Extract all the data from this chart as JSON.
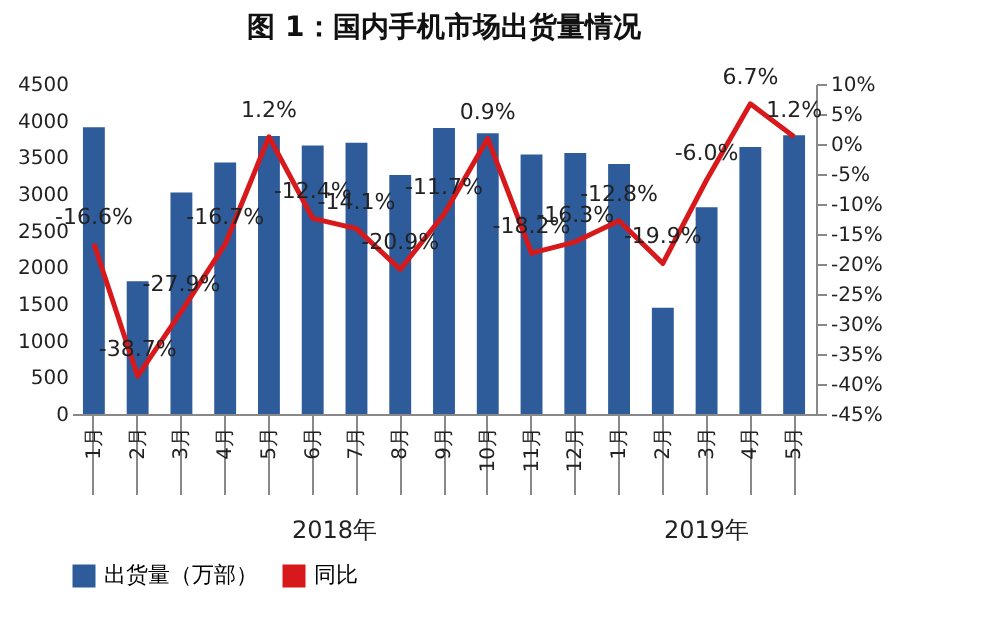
{
  "chart_data": {
    "type": "bar",
    "title": "图 1：国内手机市场出货量情况",
    "categories": [
      "1月",
      "2月",
      "3月",
      "4月",
      "5月",
      "6月",
      "7月",
      "8月",
      "9月",
      "10月",
      "11月",
      "12月",
      "1月",
      "2月",
      "3月",
      "4月",
      "5月"
    ],
    "series": [
      {
        "name": "出货量（万部）",
        "color": "#2e5b9a",
        "values": [
          3910,
          1810,
          3020,
          3430,
          3790,
          3660,
          3700,
          3260,
          3900,
          3830,
          3540,
          3560,
          3410,
          1450,
          2820,
          3640,
          3800
        ]
      },
      {
        "name": "同比",
        "type": "line",
        "axis": "y2",
        "color": "#d7191c",
        "values": [
          -16.6,
          -38.7,
          -27.9,
          -16.7,
          1.2,
          -12.4,
          -14.1,
          -20.9,
          -11.7,
          0.9,
          -18.2,
          -16.3,
          -12.8,
          -19.9,
          -6.0,
          6.7,
          1.2
        ],
        "value_labels": [
          "-16.6%",
          "-38.7%",
          "-27.9%",
          "-16.7%",
          "1.2%",
          "-12.4%",
          "-14.1%",
          "-20.9%",
          "-11.7%",
          "0.9%",
          "-18.2%",
          "-16.3%",
          "-12.8%",
          "-19.9%",
          "-6.0%",
          "6.7%",
          "1.2%"
        ]
      }
    ],
    "ylim": [
      0,
      4500
    ],
    "yticks": [
      0,
      500,
      1000,
      1500,
      2000,
      2500,
      3000,
      3500,
      4000,
      4500
    ],
    "y2lim": [
      -45,
      10
    ],
    "y2ticks": [
      {
        "value": 10,
        "label": "10%"
      },
      {
        "value": 5,
        "label": "5%"
      },
      {
        "value": 0,
        "label": "0%"
      },
      {
        "value": -5,
        "label": "-5%"
      },
      {
        "value": -10,
        "label": "-10%"
      },
      {
        "value": -15,
        "label": "-15%"
      },
      {
        "value": -20,
        "label": "-20%"
      },
      {
        "value": -25,
        "label": "-25%"
      },
      {
        "value": -30,
        "label": "-30%"
      },
      {
        "value": -35,
        "label": "-35%"
      },
      {
        "value": -40,
        "label": "-40%"
      },
      {
        "value": -45,
        "label": "-45%"
      }
    ],
    "annotations": [
      "2018年",
      "2019年"
    ],
    "legend": "bottom",
    "grid": false,
    "marker": "none",
    "line_style": "solid"
  }
}
